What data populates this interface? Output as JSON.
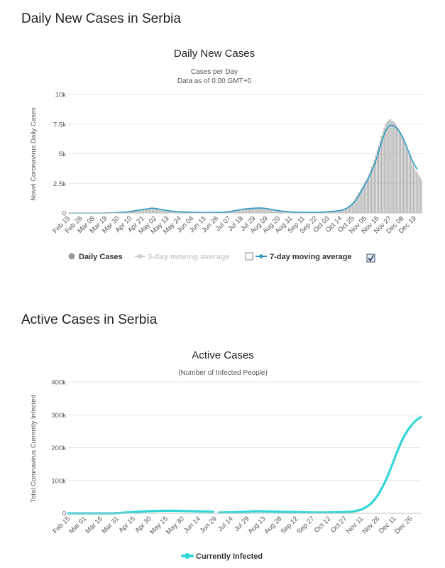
{
  "sections": {
    "daily_title": "Daily New Cases in Serbia",
    "active_title": "Active Cases in Serbia"
  },
  "chart_data": [
    {
      "type": "bar",
      "title": "Daily New Cases",
      "subtitle_line1": "Cases per Day",
      "subtitle_line2": "Data as of 0:00 GMT+0",
      "ylabel": "Novel Coronavirus Daily Cases",
      "xlabel": "",
      "ylim": [
        0,
        10000
      ],
      "y_ticks": [
        0,
        2500,
        5000,
        7500,
        10000
      ],
      "y_tick_labels": [
        "0",
        "2.5k",
        "5k",
        "7.5k",
        "10k"
      ],
      "x_tick_labels": [
        "Feb 15",
        "Feb 26",
        "Mar 08",
        "Mar 19",
        "Mar 30",
        "Apr 10",
        "Apr 21",
        "May 02",
        "May 13",
        "May 24",
        "Jun 04",
        "Jun 15",
        "Jun 26",
        "Jul 07",
        "Jul 18",
        "Jul 29",
        "Aug 09",
        "Aug 20",
        "Aug 31",
        "Sep 11",
        "Sep 22",
        "Oct 03",
        "Oct 14",
        "Oct 25",
        "Nov 05",
        "Nov 16",
        "Nov 27",
        "Dec 08",
        "Dec 19"
      ],
      "date_start": "Feb 15",
      "grid": true,
      "legend": {
        "position": "bottom",
        "items": [
          {
            "label": "Daily Cases",
            "color": "#999999"
          },
          {
            "label": "3-day moving average",
            "color": "#cccccc"
          },
          {
            "label": "7-day moving average",
            "color": "#2c9ac4"
          }
        ]
      },
      "colors": {
        "bars": "#b3b3b3",
        "line": "#2c9ac4"
      },
      "series": [
        {
          "name": "Daily Cases",
          "values": [
            0,
            0,
            0,
            0,
            0,
            0,
            0,
            0,
            0,
            0,
            0,
            0,
            0,
            0,
            0,
            0,
            0,
            0,
            0,
            0,
            0,
            0,
            0,
            0,
            1,
            2,
            4,
            6,
            10,
            15,
            20,
            25,
            30,
            35,
            40,
            45,
            50,
            55,
            60,
            70,
            80,
            90,
            100,
            120,
            140,
            160,
            180,
            200,
            220,
            240,
            260,
            280,
            300,
            320,
            340,
            300,
            350,
            380,
            400,
            420,
            440,
            460,
            400,
            380,
            360,
            340,
            320,
            300,
            280,
            260,
            240,
            220,
            200,
            180,
            160,
            150,
            140,
            130,
            120,
            110,
            100,
            95,
            90,
            85,
            80,
            75,
            70,
            68,
            66,
            64,
            62,
            60,
            58,
            56,
            55,
            54,
            53,
            52,
            51,
            50,
            50,
            52,
            54,
            56,
            58,
            60,
            62,
            64,
            66,
            68,
            70,
            75,
            80,
            90,
            100,
            120,
            140,
            160,
            180,
            200,
            220,
            250,
            280,
            300,
            320,
            340,
            350,
            360,
            370,
            380,
            390,
            400,
            410,
            420,
            430,
            440,
            440,
            430,
            420,
            410,
            400,
            380,
            360,
            340,
            320,
            300,
            280,
            260,
            240,
            220,
            200,
            180,
            170,
            160,
            150,
            140,
            130,
            120,
            110,
            100,
            95,
            90,
            85,
            80,
            75,
            70,
            70,
            70,
            70,
            70,
            70,
            70,
            70,
            70,
            70,
            70,
            70,
            70,
            70,
            70,
            75,
            80,
            85,
            90,
            95,
            100,
            110,
            120,
            130,
            140,
            150,
            160,
            170,
            180,
            190,
            200,
            250,
            300,
            350,
            400,
            450,
            550,
            650,
            750,
            850,
            1000,
            1200,
            1400,
            1600,
            1800,
            2000,
            2200,
            2400,
            2600,
            2800,
            3000,
            3300,
            3600,
            3900,
            4200,
            4500,
            4900,
            5300,
            5700,
            6100,
            6500,
            6900,
            7200,
            7500,
            7700,
            7800,
            7900,
            7900,
            7800,
            7700,
            7600,
            7400,
            7200,
            7000,
            6800,
            6500,
            6200,
            5900,
            5600,
            5300,
            5000,
            4700,
            4400,
            4100,
            3800,
            3600,
            3400,
            3200,
            3000,
            2800
          ]
        },
        {
          "name": "7-day moving average",
          "values": [
            0,
            0,
            0,
            0,
            0,
            0,
            0,
            0,
            0,
            0,
            0,
            0,
            0,
            0,
            0,
            0,
            0,
            0,
            0,
            0,
            0,
            0,
            0,
            0,
            0,
            1,
            2,
            4,
            7,
            11,
            15,
            20,
            25,
            30,
            35,
            40,
            45,
            50,
            55,
            62,
            70,
            80,
            90,
            105,
            120,
            140,
            160,
            180,
            200,
            220,
            240,
            260,
            280,
            300,
            320,
            330,
            340,
            360,
            380,
            400,
            410,
            400,
            390,
            370,
            350,
            330,
            310,
            290,
            270,
            250,
            230,
            210,
            190,
            175,
            160,
            150,
            140,
            130,
            120,
            110,
            102,
            96,
            90,
            85,
            80,
            76,
            72,
            69,
            66,
            64,
            62,
            60,
            58,
            57,
            56,
            55,
            54,
            53,
            52,
            51,
            51,
            52,
            54,
            56,
            58,
            60,
            62,
            64,
            66,
            68,
            71,
            75,
            80,
            88,
            98,
            112,
            128,
            146,
            165,
            185,
            206,
            228,
            252,
            275,
            298,
            318,
            335,
            348,
            358,
            367,
            376,
            385,
            394,
            403,
            412,
            420,
            426,
            428,
            426,
            420,
            410,
            396,
            380,
            362,
            343,
            322,
            300,
            280,
            260,
            240,
            220,
            200,
            184,
            168,
            154,
            142,
            131,
            121,
            112,
            104,
            97,
            91,
            86,
            81,
            77,
            73,
            71,
            70,
            70,
            70,
            70,
            70,
            70,
            70,
            70,
            70,
            70,
            70,
            71,
            72,
            74,
            78,
            82,
            87,
            92,
            98,
            105,
            113,
            122,
            132,
            142,
            152,
            163,
            175,
            188,
            202,
            225,
            260,
            300,
            345,
            395,
            460,
            540,
            630,
            730,
            850,
            990,
            1150,
            1330,
            1520,
            1720,
            1920,
            2120,
            2330,
            2540,
            2760,
            2990,
            3240,
            3510,
            3800,
            4100,
            4420,
            4780,
            5150,
            5530,
            5900,
            6260,
            6590,
            6880,
            7110,
            7280,
            7380,
            7400,
            7380,
            7340,
            7270,
            7170,
            7040,
            6880,
            6690,
            6470,
            6220,
            5950,
            5660,
            5360,
            5060,
            4770,
            4500,
            4260,
            4040,
            3850,
            3680
          ]
        }
      ]
    },
    {
      "type": "line",
      "title": "Active Cases",
      "subtitle": "(Number of Infected People)",
      "ylabel": "Total Coronavirus Currently Infected",
      "xlabel": "",
      "ylim": [
        0,
        400000
      ],
      "y_ticks": [
        0,
        100000,
        200000,
        300000,
        400000
      ],
      "y_tick_labels": [
        "0",
        "100k",
        "200k",
        "300k",
        "400k"
      ],
      "x_tick_labels": [
        "Feb 15",
        "Mar 01",
        "Mar 16",
        "Mar 31",
        "Apr 15",
        "Apr 30",
        "May 15",
        "May 30",
        "Jun 14",
        "Jun 29",
        "Jul 14",
        "Jul 29",
        "Aug 13",
        "Aug 28",
        "Sep 12",
        "Sep 27",
        "Oct 12",
        "Oct 27",
        "Nov 11",
        "Nov 26",
        "Dec 11",
        "Dec 26"
      ],
      "date_start": "Feb 15",
      "grid": true,
      "legend": {
        "position": "bottom",
        "items": [
          {
            "label": "Currently Infected",
            "color": "#33d6d6"
          }
        ]
      },
      "colors": {
        "line": "#33d6d6"
      },
      "series": [
        {
          "name": "Currently Infected",
          "values": [
            0,
            0,
            0,
            0,
            0,
            0,
            0,
            0,
            0,
            0,
            0,
            0,
            0,
            0,
            0,
            0,
            0,
            0,
            0,
            0,
            0,
            0,
            0,
            0,
            0,
            0,
            0,
            0,
            0,
            0,
            50,
            150,
            300,
            500,
            750,
            1000,
            1300,
            1600,
            1900,
            2200,
            2500,
            2800,
            3100,
            3400,
            3700,
            4000,
            4300,
            4600,
            4900,
            5200,
            5400,
            5600,
            5800,
            6000,
            6200,
            6400,
            6600,
            6800,
            7000,
            7100,
            7200,
            7300,
            7400,
            7500,
            7600,
            7700,
            7800,
            7900,
            7900,
            7900,
            7900,
            7800,
            7800,
            7700,
            7600,
            7500,
            7400,
            7300,
            7200,
            7100,
            7000,
            6900,
            6800,
            6700,
            6600,
            6500,
            6400,
            6300,
            6200,
            6100,
            6000,
            5900,
            5800,
            5700,
            5600,
            5500,
            5400,
            5300,
            5200,
            5100,
            null,
            null,
            null,
            2500,
            2500,
            2600,
            2700,
            2800,
            2900,
            3000,
            3100,
            3200,
            3300,
            3400,
            3500,
            3700,
            3900,
            4100,
            4300,
            4500,
            4700,
            4900,
            5100,
            5300,
            5500,
            5700,
            5900,
            6000,
            6100,
            6200,
            6200,
            6200,
            6100,
            6000,
            5900,
            5800,
            5700,
            5600,
            5500,
            5400,
            5300,
            5200,
            5100,
            5000,
            4900,
            4800,
            4700,
            4600,
            4500,
            4400,
            4300,
            4200,
            4100,
            4000,
            3900,
            3800,
            3700,
            3600,
            3500,
            3400,
            3300,
            3200,
            3100,
            3000,
            2900,
            2800,
            2700,
            2600,
            2500,
            2400,
            2400,
            2400,
            2400,
            2400,
            2400,
            2500,
            2600,
            2700,
            2800,
            2900,
            3000,
            3100,
            3200,
            3300,
            3400,
            3500,
            3600,
            3700,
            3800,
            3900,
            4100,
            4400,
            4700,
            5000,
            5400,
            6000,
            6700,
            7500,
            8500,
            9800,
            11300,
            13000,
            15000,
            17300,
            20000,
            23000,
            26500,
            30500,
            35000,
            40000,
            45500,
            51500,
            58000,
            65500,
            73500,
            82000,
            91000,
            100500,
            110500,
            121000,
            132000,
            143500,
            155000,
            166500,
            178000,
            189500,
            200500,
            211000,
            221000,
            230000,
            238000,
            245500,
            252500,
            259000,
            265000,
            270500,
            275500,
            280000,
            284000,
            287500,
            290500,
            293000
          ]
        }
      ]
    }
  ]
}
